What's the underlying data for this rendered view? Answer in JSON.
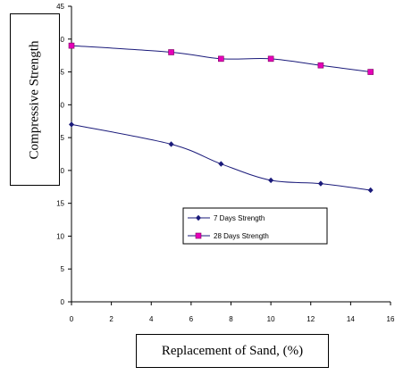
{
  "chart_data": {
    "type": "line",
    "title": "",
    "xlabel": "Replacement of Sand, (%)",
    "ylabel": "Compressive Strength",
    "xlim": [
      0,
      16
    ],
    "ylim": [
      0,
      45
    ],
    "x_ticks": [
      "0",
      "2",
      "4",
      "6",
      "8",
      "10",
      "12",
      "14",
      "16"
    ],
    "y_ticks": [
      "0",
      "5",
      "10",
      "15",
      "20",
      "25",
      "30",
      "35",
      "40",
      "45"
    ],
    "grid": false,
    "legend_position": "center-right",
    "series": [
      {
        "name": "7 Days Strength",
        "marker": "diamond",
        "color": "#1a1a7a",
        "x": [
          0,
          5,
          7.5,
          10,
          12.5,
          15
        ],
        "y": [
          27,
          24,
          21,
          18.5,
          18,
          17
        ]
      },
      {
        "name": "28 Days Strength",
        "marker": "square",
        "color": "#e600b8",
        "line_color": "#1a1a7a",
        "x": [
          0,
          5,
          7.5,
          10,
          12.5,
          15
        ],
        "y": [
          39,
          38,
          37,
          37,
          36,
          35
        ]
      }
    ]
  }
}
